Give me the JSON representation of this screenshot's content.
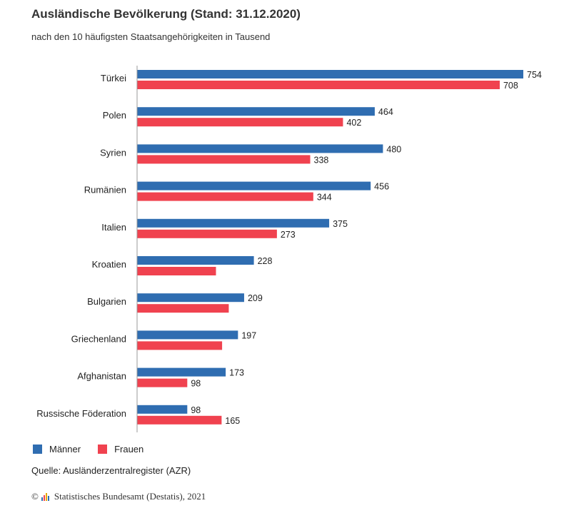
{
  "header": {
    "title": "Ausländische Bevölkerung (Stand: 31.12.2020)",
    "subtitle": "nach den 10 häufigsten Staatsangehörigkeiten in Tausend"
  },
  "colors": {
    "maenner": "#2f6db1",
    "frauen": "#f0424f",
    "axis": "#9a9a9a"
  },
  "legend": {
    "maenner": "Männer",
    "frauen": "Frauen"
  },
  "source": "Quelle: Ausländerzentralregister (AZR)",
  "footer": {
    "copyright": "©",
    "publisher": "Statistisches Bundesamt (Destatis), 2021",
    "logo_icon": "destatis-logo-icon"
  },
  "chart_data": {
    "type": "bar",
    "orientation": "horizontal",
    "title": "Ausländische Bevölkerung (Stand: 31.12.2020)",
    "subtitle": "nach den 10 häufigsten Staatsangehörigkeiten in Tausend",
    "categories": [
      "Türkei",
      "Polen",
      "Syrien",
      "Rumänien",
      "Italien",
      "Kroatien",
      "Bulgarien",
      "Griechenland",
      "Afghanistan",
      "Russische Föderation"
    ],
    "series": [
      {
        "name": "Männer",
        "values": [
          754,
          464,
          480,
          456,
          375,
          228,
          209,
          197,
          173,
          98
        ]
      },
      {
        "name": "Frauen",
        "values": [
          708,
          402,
          338,
          344,
          273,
          154,
          179,
          166,
          98,
          165
        ]
      }
    ],
    "value_labels": [
      [
        "754",
        "464",
        "480",
        "456",
        "375",
        "228",
        "209",
        "197",
        "173",
        "98"
      ],
      [
        "708",
        "402",
        "338",
        "344",
        "273",
        "",
        "",
        "",
        "98",
        "165"
      ]
    ],
    "xlim": [
      0,
      754
    ],
    "grid": false,
    "legend_position": "bottom-left"
  }
}
